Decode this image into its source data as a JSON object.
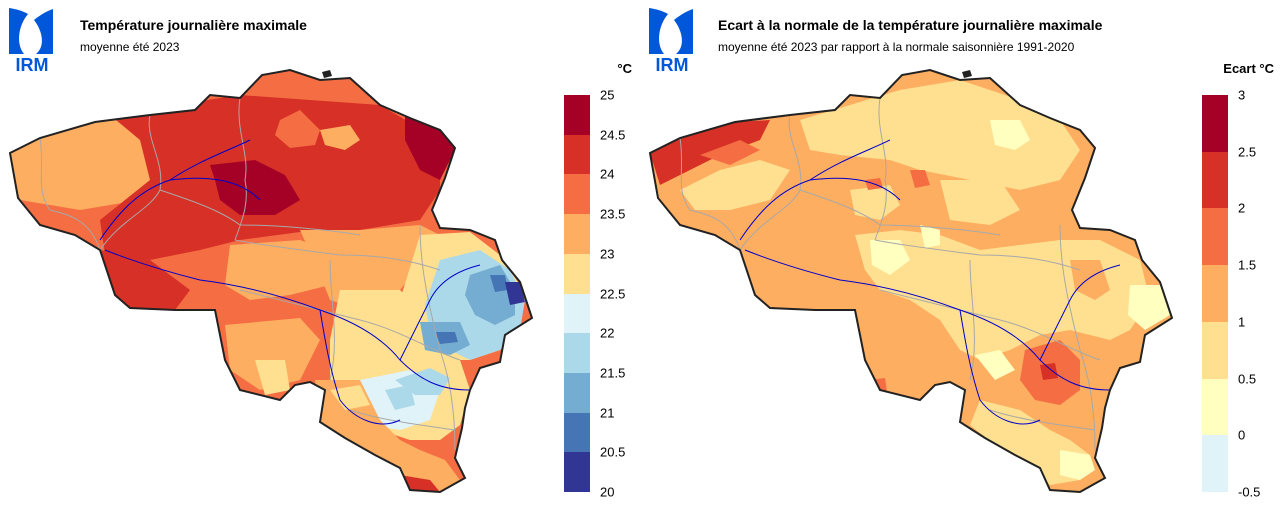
{
  "logo_text": "IRM",
  "panels": [
    {
      "title": "Température journalière maximale",
      "subtitle": "moyenne été 2023",
      "unit": "°C",
      "legend": {
        "ticks": [
          "25",
          "24.5",
          "24",
          "23.5",
          "23",
          "22.5",
          "22",
          "21.5",
          "21",
          "20.5",
          "20"
        ],
        "colors": [
          "#a50026",
          "#d73027",
          "#f46d43",
          "#fdae61",
          "#fee090",
          "#e0f3f8",
          "#abd9e9",
          "#74add1",
          "#4575b4",
          "#313695"
        ]
      },
      "regions": [
        "west-coast",
        "north-center",
        "northeast-hotspot",
        "center-hotspot",
        "ardennes",
        "eifel-border",
        "south-gaume"
      ]
    },
    {
      "title": "Ecart à la normale de la température journalière maximale",
      "subtitle": "moyenne été 2023 par rapport à la normale saisonnière 1991-2020",
      "unit": "Ecart °C",
      "legend": {
        "ticks": [
          "3",
          "2.5",
          "2",
          "1.5",
          "1",
          "0.5",
          "0",
          "-0.5"
        ],
        "colors": [
          "#a50026",
          "#d73027",
          "#f46d43",
          "#fdae61",
          "#fee090",
          "#ffffbf",
          "#e0f3f8"
        ]
      },
      "regions": [
        "west-coast",
        "north-center",
        "center",
        "ardennes",
        "south-gaume"
      ]
    }
  ]
}
